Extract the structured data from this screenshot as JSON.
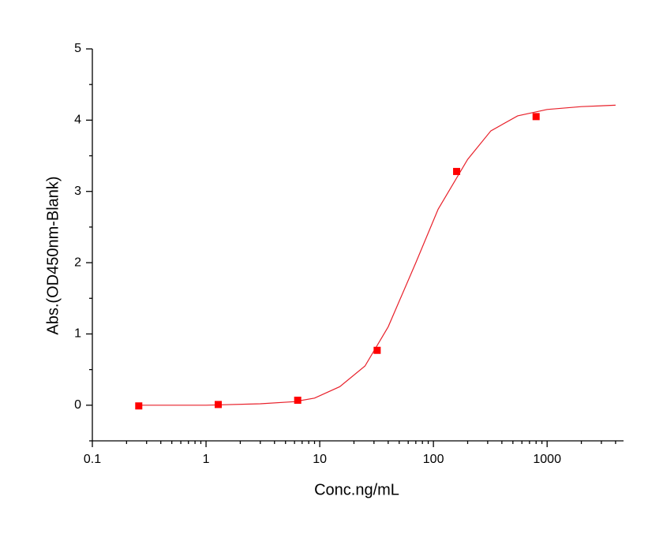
{
  "chart_data": {
    "type": "scatter",
    "xlabel": "Conc.ng/mL",
    "ylabel": "Abs.(OD450nm-Blank)",
    "x": [
      0.256,
      1.28,
      6.4,
      32,
      160,
      800
    ],
    "values": [
      -0.01,
      0.01,
      0.07,
      0.77,
      3.28,
      4.05
    ],
    "color": "#ff0000",
    "curve": {
      "color": "#e8202a",
      "x": [
        0.25,
        1,
        3,
        6,
        9,
        15,
        25,
        40,
        70,
        110,
        200,
        320,
        550,
        1000,
        2000,
        4000
      ],
      "values": [
        0,
        0,
        0.02,
        0.05,
        0.1,
        0.26,
        0.55,
        1.1,
        2.0,
        2.75,
        3.45,
        3.85,
        4.06,
        4.15,
        4.19,
        4.21
      ]
    },
    "xscale": "log",
    "xlim": [
      0.1,
      4700
    ],
    "xticks": [
      0.1,
      1,
      10,
      100,
      1000
    ],
    "ylim": [
      -0.5,
      5
    ],
    "yticks": [
      0,
      1,
      2,
      3,
      4,
      5
    ]
  }
}
